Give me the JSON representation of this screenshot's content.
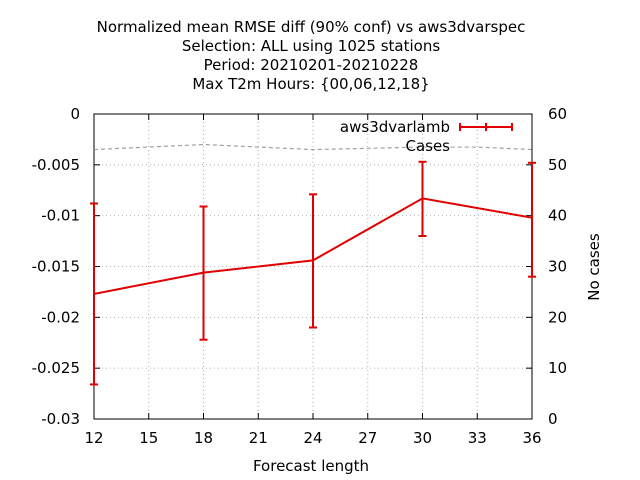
{
  "chart_data": {
    "type": "line",
    "title_lines": [
      "Normalized mean RMSE diff (90% conf) vs aws3dvarspec",
      "Selection: ALL using  1025 stations",
      "Period: 20210201-20210228",
      "Max T2m   Hours: {00,06,12,18}"
    ],
    "xlabel": "Forecast length",
    "ylabel": "",
    "y2label": "No cases",
    "xlim": [
      12,
      36
    ],
    "ylim": [
      -0.03,
      0
    ],
    "y2lim": [
      0,
      60
    ],
    "x_ticks": [
      "12",
      "15",
      "18",
      "21",
      "24",
      "27",
      "30",
      "33",
      "36"
    ],
    "y_ticks": [
      "0",
      "-0.005",
      "-0.01",
      "-0.015",
      "-0.02",
      "-0.025",
      "-0.03"
    ],
    "y2_ticks": [
      "60",
      "50",
      "40",
      "30",
      "20",
      "10",
      "0"
    ],
    "grid": true,
    "legend_position": "top-right",
    "series": [
      {
        "name": "aws3dvarlamb",
        "color": "#e00000",
        "style": "line-errorbars",
        "x": [
          12,
          18,
          24,
          30,
          36
        ],
        "y": [
          -0.0177,
          -0.0156,
          -0.0144,
          -0.0083,
          -0.0102
        ],
        "y_low": [
          -0.0266,
          -0.0222,
          -0.021,
          -0.012,
          -0.016
        ],
        "y_high": [
          -0.0088,
          -0.0091,
          -0.0079,
          -0.0047,
          -0.0048
        ]
      },
      {
        "name": "Cases",
        "color": "#a0a0a0",
        "style": "dashed",
        "axis": "y2",
        "x": [
          12,
          18,
          24,
          30,
          33,
          36
        ],
        "y": [
          53,
          54,
          53,
          53.5,
          53.5,
          53
        ]
      }
    ]
  }
}
